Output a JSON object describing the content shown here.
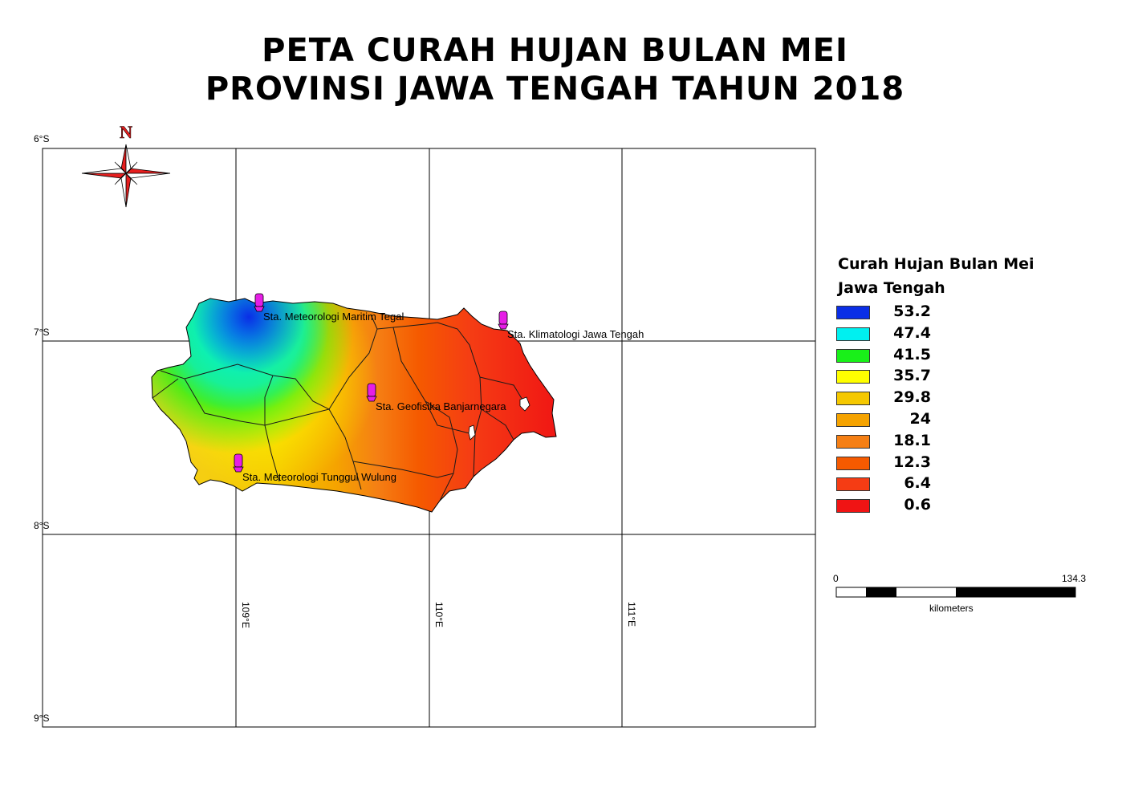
{
  "title": {
    "line1": "PETA CURAH HUJAN BULAN MEI",
    "line2": "PROVINSI JAWA TENGAH TAHUN 2018"
  },
  "north_arrow": {
    "label": "N"
  },
  "grid": {
    "latitudes": [
      "6°S",
      "7°S",
      "8°S",
      "9°S"
    ],
    "longitudes": [
      "109°E",
      "110°E",
      "111°E"
    ]
  },
  "stations": [
    {
      "name": "Sta. Meteorologi Maritim Tegal"
    },
    {
      "name": "Sta. Klimatologi Jawa Tengah"
    },
    {
      "name": "Sta. Geofisika Banjarnegara"
    },
    {
      "name": "Sta. Meteorologi Tunggul Wulung"
    }
  ],
  "legend": {
    "title_line1": "Curah Hujan Bulan Mei",
    "title_line2": "Jawa Tengah",
    "classes": [
      {
        "label": "53.2",
        "color": "#0a2ee6"
      },
      {
        "label": "47.4",
        "color": "#00f0f0"
      },
      {
        "label": "41.5",
        "color": "#19f019"
      },
      {
        "label": "35.7",
        "color": "#ffff00"
      },
      {
        "label": "29.8",
        "color": "#f5c800"
      },
      {
        "label": "24",
        "color": "#f5a300"
      },
      {
        "label": "18.1",
        "color": "#f57f14"
      },
      {
        "label": "12.3",
        "color": "#f55a00"
      },
      {
        "label": "6.4",
        "color": "#f53c14"
      },
      {
        "label": "0.6",
        "color": "#f01414"
      }
    ]
  },
  "scale_bar": {
    "start": "0",
    "end": "134.3",
    "unit": "kilometers"
  }
}
